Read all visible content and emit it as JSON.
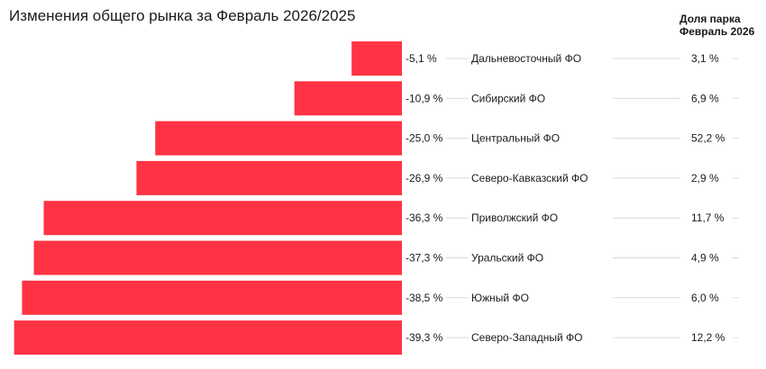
{
  "chart_data": {
    "type": "bar",
    "orientation": "horizontal",
    "title": "Изменения общего рынка за Февраль 2026/2025",
    "share_header": [
      "Доля парка",
      "Февраль 2026"
    ],
    "categories": [
      "Дальневосточный ФО",
      "Сибирский ФО",
      "Центральный ФО",
      "Северо-Кавказский ФО",
      "Приволжский ФО",
      "Уральский ФО",
      "Южный ФО",
      "Северо-Западный ФО"
    ],
    "values": [
      -5.1,
      -10.9,
      -25.0,
      -26.9,
      -36.3,
      -37.3,
      -38.5,
      -39.3
    ],
    "value_labels": [
      "-5,1 %",
      "-10,9 %",
      "-25,0 %",
      "-26,9 %",
      "-36,3 %",
      "-37,3 %",
      "-38,5 %",
      "-39,3 %"
    ],
    "share_values": [
      3.1,
      6.9,
      52.2,
      2.9,
      11.7,
      4.9,
      6.0,
      12.2
    ],
    "share_labels": [
      "3,1 %",
      "6,9 %",
      "52,2 %",
      "2,9 %",
      "11,7 %",
      "4,9 %",
      "6,0 %",
      "12,2 %"
    ],
    "xlim": [
      -40,
      0
    ],
    "bar_color": "#ff3344",
    "line_color": "#d9d9d9",
    "grid": false,
    "legend": "none"
  }
}
